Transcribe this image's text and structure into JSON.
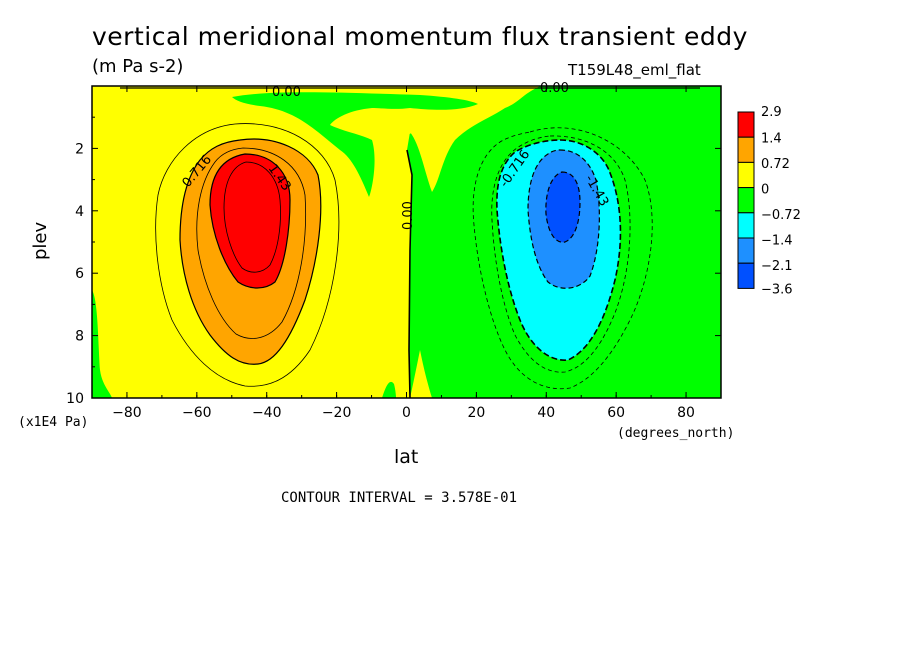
{
  "header": {
    "title": "vertical meridional momentum flux transient eddy",
    "units": "(m Pa s-2)",
    "run_id": "T159L48_eml_flat"
  },
  "footer": {
    "contour_interval": "CONTOUR INTERVAL = 3.578E-01"
  },
  "chart_data": {
    "type": "contour",
    "title": "vertical meridional momentum flux transient eddy",
    "subtitle": "(m Pa s-2)",
    "xlabel": "lat",
    "x_units": "(degrees_north)",
    "ylabel": "plev",
    "y_units": "(x1E4 Pa)",
    "xlim": [
      -90,
      90
    ],
    "ylim": [
      10,
      0
    ],
    "x_ticks": [
      -80,
      -60,
      -40,
      -20,
      0,
      20,
      40,
      60,
      80
    ],
    "y_ticks": [
      2,
      4,
      6,
      8,
      10
    ],
    "contour_interval": 0.3578,
    "colorbar": {
      "labels": [
        "2.9",
        "1.4",
        "0.72",
        "0",
        "-0.72",
        "-1.4",
        "-2.1",
        "-3.6"
      ],
      "colors": [
        "#ff0000",
        "#ffa500",
        "#ffff00",
        "#00ff00",
        "#00ffff",
        "#1e90ff",
        "#0050ff"
      ]
    },
    "contour_labels": [
      "0.716",
      "1.43",
      "0.00",
      "-0.716",
      "-1.43",
      "0.00",
      "0.00"
    ],
    "features": [
      {
        "name": "southern positive maximum",
        "lat": -45,
        "plev": 4.0,
        "value": 2.9
      },
      {
        "name": "northern negative minimum",
        "lat": 44,
        "plev": 3.8,
        "value": -3.6
      }
    ]
  }
}
